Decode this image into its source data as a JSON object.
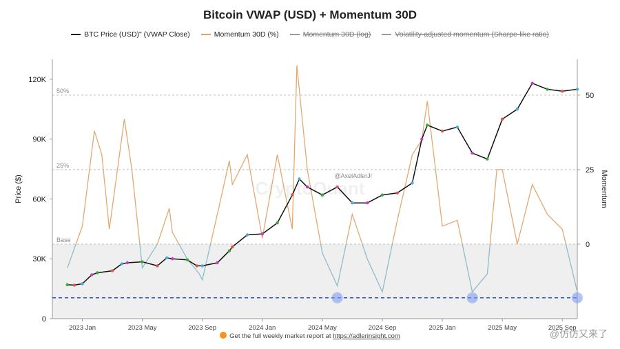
{
  "title": "Bitcoin VWAP (USD) + Momentum 30D",
  "legend": [
    {
      "label": "BTC Price (USD)\" (VWAP Close)",
      "color": "#111111",
      "active": true
    },
    {
      "label": "Momentum 30D (%)",
      "color": "#e0a26a",
      "active": true
    },
    {
      "label": "Momentum 30D (log)",
      "color": "#8c8c8c",
      "active": false
    },
    {
      "label": "Volatility-adjusted momentum (Sharpe-like ratio)",
      "color": "#8c8c8c",
      "active": false
    }
  ],
  "footer": {
    "text": "Get the full weekly market report at",
    "link": "https://adlerinsight.com"
  },
  "watermarks": {
    "center": "CryptoQuant",
    "handle": "@AxelAdlerJr",
    "corner": "@仿仿又来了"
  },
  "chart_data": {
    "type": "line",
    "x_ticks": [
      "2023 Jan",
      "2023 May",
      "2023 Sep",
      "2024 Jan",
      "2024 May",
      "2024 Sep",
      "2025 Jan",
      "2025 May",
      "2025 Sep"
    ],
    "x_range": [
      "2022-11",
      "2025-10"
    ],
    "y_left": {
      "label": "Price ($)",
      "ticks": [
        "0",
        "30K",
        "60K",
        "90K",
        "120K"
      ],
      "range": [
        0,
        130000
      ]
    },
    "y_right": {
      "label": "Momentum",
      "ticks": [
        "0",
        "25",
        "50"
      ],
      "range": [
        -25,
        62
      ]
    },
    "bands": [
      {
        "label": "50%",
        "value": 50
      },
      {
        "label": "25%",
        "value": 25
      },
      {
        "label": "Base",
        "value": 0
      }
    ],
    "reference_line": {
      "value": -18,
      "style": "dashed",
      "color": "#2b4fd8"
    },
    "highlight_points": [
      {
        "x": "2024-06"
      },
      {
        "x": "2025-03"
      },
      {
        "x": "2025-10"
      }
    ],
    "series": [
      {
        "name": "BTC Price (USD)\" (VWAP Close)",
        "axis": "left",
        "color": "#111111",
        "x": [
          "2022-12",
          "2022-12-15",
          "2023-01",
          "2023-01-20",
          "2023-02",
          "2023-03",
          "2023-03-20",
          "2023-04",
          "2023-05",
          "2023-06",
          "2023-06-20",
          "2023-07",
          "2023-08",
          "2023-08-20",
          "2023-09",
          "2023-10",
          "2023-10-25",
          "2023-11",
          "2023-12",
          "2024-01",
          "2024-02",
          "2024-03",
          "2024-03-15",
          "2024-04",
          "2024-05",
          "2024-06",
          "2024-07",
          "2024-08",
          "2024-09",
          "2024-10",
          "2024-11",
          "2024-11-20",
          "2024-12",
          "2025-01",
          "2025-02",
          "2025-03",
          "2025-04",
          "2025-05",
          "2025-06",
          "2025-07",
          "2025-08",
          "2025-09",
          "2025-10"
        ],
        "values": [
          17000,
          16800,
          17500,
          22000,
          23000,
          24000,
          27500,
          28000,
          28500,
          26500,
          30500,
          30000,
          29500,
          26500,
          26500,
          28000,
          34000,
          36000,
          42000,
          42500,
          48000,
          62000,
          70000,
          66000,
          62000,
          66000,
          58000,
          58000,
          62000,
          63000,
          68000,
          90000,
          97000,
          94000,
          96000,
          83000,
          80000,
          100000,
          105000,
          118000,
          115000,
          114000,
          115000
        ]
      },
      {
        "name": "Momentum 30D (%)",
        "axis": "right",
        "color": "#e0a26a",
        "x": [
          "2022-12",
          "2023-01",
          "2023-01-25",
          "2023-02-10",
          "2023-02-25",
          "2023-03-25",
          "2023-04-10",
          "2023-05",
          "2023-06",
          "2023-06-25",
          "2023-07",
          "2023-08",
          "2023-08-25",
          "2023-09",
          "2023-10",
          "2023-10-25",
          "2023-11",
          "2023-12",
          "2024-01",
          "2024-02",
          "2024-03",
          "2024-03-10",
          "2024-04",
          "2024-05",
          "2024-06",
          "2024-07",
          "2024-08",
          "2024-09",
          "2024-10",
          "2024-11",
          "2024-11-20",
          "2024-12",
          "2025-01",
          "2025-02",
          "2025-03",
          "2025-04",
          "2025-04-20",
          "2025-05",
          "2025-06",
          "2025-07",
          "2025-08",
          "2025-09",
          "2025-10"
        ],
        "values": [
          -8,
          6,
          38,
          30,
          5,
          42,
          25,
          -8,
          0,
          12,
          4,
          -5,
          -10,
          -12,
          10,
          28,
          20,
          30,
          2,
          30,
          5,
          60,
          25,
          -3,
          -14,
          10,
          -5,
          -16,
          8,
          30,
          35,
          48,
          6,
          8,
          -16,
          -10,
          25,
          25,
          0,
          20,
          10,
          5,
          -16
        ]
      }
    ]
  }
}
